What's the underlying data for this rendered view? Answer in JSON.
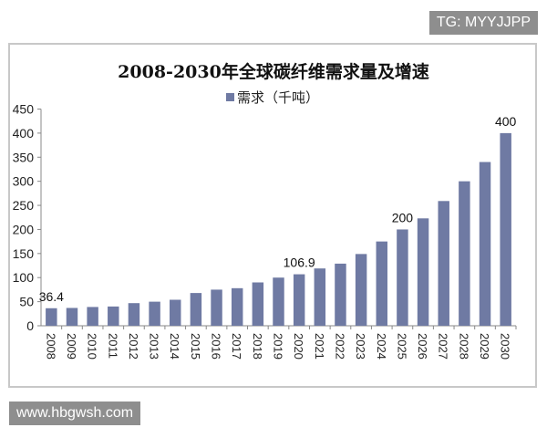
{
  "watermark_top": "TG: MYYJJPP",
  "watermark_bottom": "www.hbgwsh.com",
  "chart_data": {
    "type": "bar",
    "title": "2008-2030年全球碳纤维需求量及增速",
    "xlabel": "",
    "ylabel": "",
    "ylim": [
      0,
      450
    ],
    "yticks": [
      0,
      50,
      100,
      150,
      200,
      250,
      300,
      350,
      400,
      450
    ],
    "grid": false,
    "legend_position": "top-center",
    "categories": [
      "2008",
      "2009",
      "2010",
      "2011",
      "2012",
      "2013",
      "2014",
      "2015",
      "2016",
      "2017",
      "2018",
      "2019",
      "2020",
      "2021",
      "2022",
      "2023",
      "2024",
      "2025",
      "2026",
      "2027",
      "2028",
      "2029",
      "2030"
    ],
    "series": [
      {
        "name": "需求（千吨）",
        "color": "#6f7aa3",
        "values": [
          36.4,
          37,
          39,
          40,
          47,
          50,
          54,
          68,
          75,
          78,
          90,
          100,
          106.9,
          119,
          129,
          149,
          175,
          200,
          223,
          259,
          300,
          340,
          400
        ]
      }
    ],
    "data_labels": {
      "2008": "36.4",
      "2020": "106.9",
      "2025": "200",
      "2030": "400"
    }
  }
}
